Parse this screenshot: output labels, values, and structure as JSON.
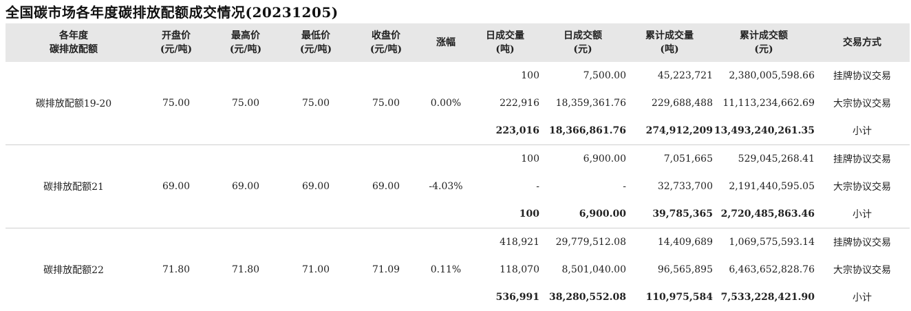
{
  "title": "全国碳市场各年度碳排放配额成交情况(20231205)",
  "headers": [
    {
      "line1": "各年度",
      "line2": "碳排放配额"
    },
    {
      "line1": "开盘价",
      "line2": "(元/吨)"
    },
    {
      "line1": "最高价",
      "line2": "(元/吨)"
    },
    {
      "line1": "最低价",
      "line2": "(元/吨)"
    },
    {
      "line1": "收盘价",
      "line2": "(元/吨)"
    },
    {
      "line1": "涨幅",
      "line2": ""
    },
    {
      "line1": "日成交量",
      "line2": "(吨)"
    },
    {
      "line1": "日成交额",
      "line2": "(元)"
    },
    {
      "line1": "累计成交量",
      "line2": "(吨)"
    },
    {
      "line1": "累计成交额",
      "line2": "(元)"
    },
    {
      "line1": "交易方式",
      "line2": ""
    }
  ],
  "groups": [
    {
      "name": "碳排放配额19-20",
      "open": "75.00",
      "high": "75.00",
      "low": "75.00",
      "close": "75.00",
      "change": "0.00%",
      "rows": [
        {
          "daily_volume": "100",
          "daily_amount": "7,500.00",
          "cum_volume": "45,223,721",
          "cum_amount": "2,380,005,598.66",
          "method": "挂牌协议交易"
        },
        {
          "daily_volume": "222,916",
          "daily_amount": "18,359,361.76",
          "cum_volume": "229,688,488",
          "cum_amount": "11,113,234,662.69",
          "method": "大宗协议交易"
        },
        {
          "daily_volume": "223,016",
          "daily_amount": "18,366,861.76",
          "cum_volume": "274,912,209",
          "cum_amount": "13,493,240,261.35",
          "method": "小计"
        }
      ]
    },
    {
      "name": "碳排放配额21",
      "open": "69.00",
      "high": "69.00",
      "low": "69.00",
      "close": "69.00",
      "change": "-4.03%",
      "rows": [
        {
          "daily_volume": "100",
          "daily_amount": "6,900.00",
          "cum_volume": "7,051,665",
          "cum_amount": "529,045,268.41",
          "method": "挂牌协议交易"
        },
        {
          "daily_volume": "-",
          "daily_amount": "-",
          "cum_volume": "32,733,700",
          "cum_amount": "2,191,440,595.05",
          "method": "大宗协议交易"
        },
        {
          "daily_volume": "100",
          "daily_amount": "6,900.00",
          "cum_volume": "39,785,365",
          "cum_amount": "2,720,485,863.46",
          "method": "小计"
        }
      ]
    },
    {
      "name": "碳排放配额22",
      "open": "71.80",
      "high": "71.80",
      "low": "71.00",
      "close": "71.09",
      "change": "0.11%",
      "rows": [
        {
          "daily_volume": "418,921",
          "daily_amount": "29,779,512.08",
          "cum_volume": "14,409,689",
          "cum_amount": "1,069,575,593.14",
          "method": "挂牌协议交易"
        },
        {
          "daily_volume": "118,070",
          "daily_amount": "8,501,040.00",
          "cum_volume": "96,565,895",
          "cum_amount": "6,463,652,828.76",
          "method": "大宗协议交易"
        },
        {
          "daily_volume": "536,991",
          "daily_amount": "38,280,552.08",
          "cum_volume": "110,975,584",
          "cum_amount": "7,533,228,421.90",
          "method": "小计"
        }
      ]
    }
  ]
}
